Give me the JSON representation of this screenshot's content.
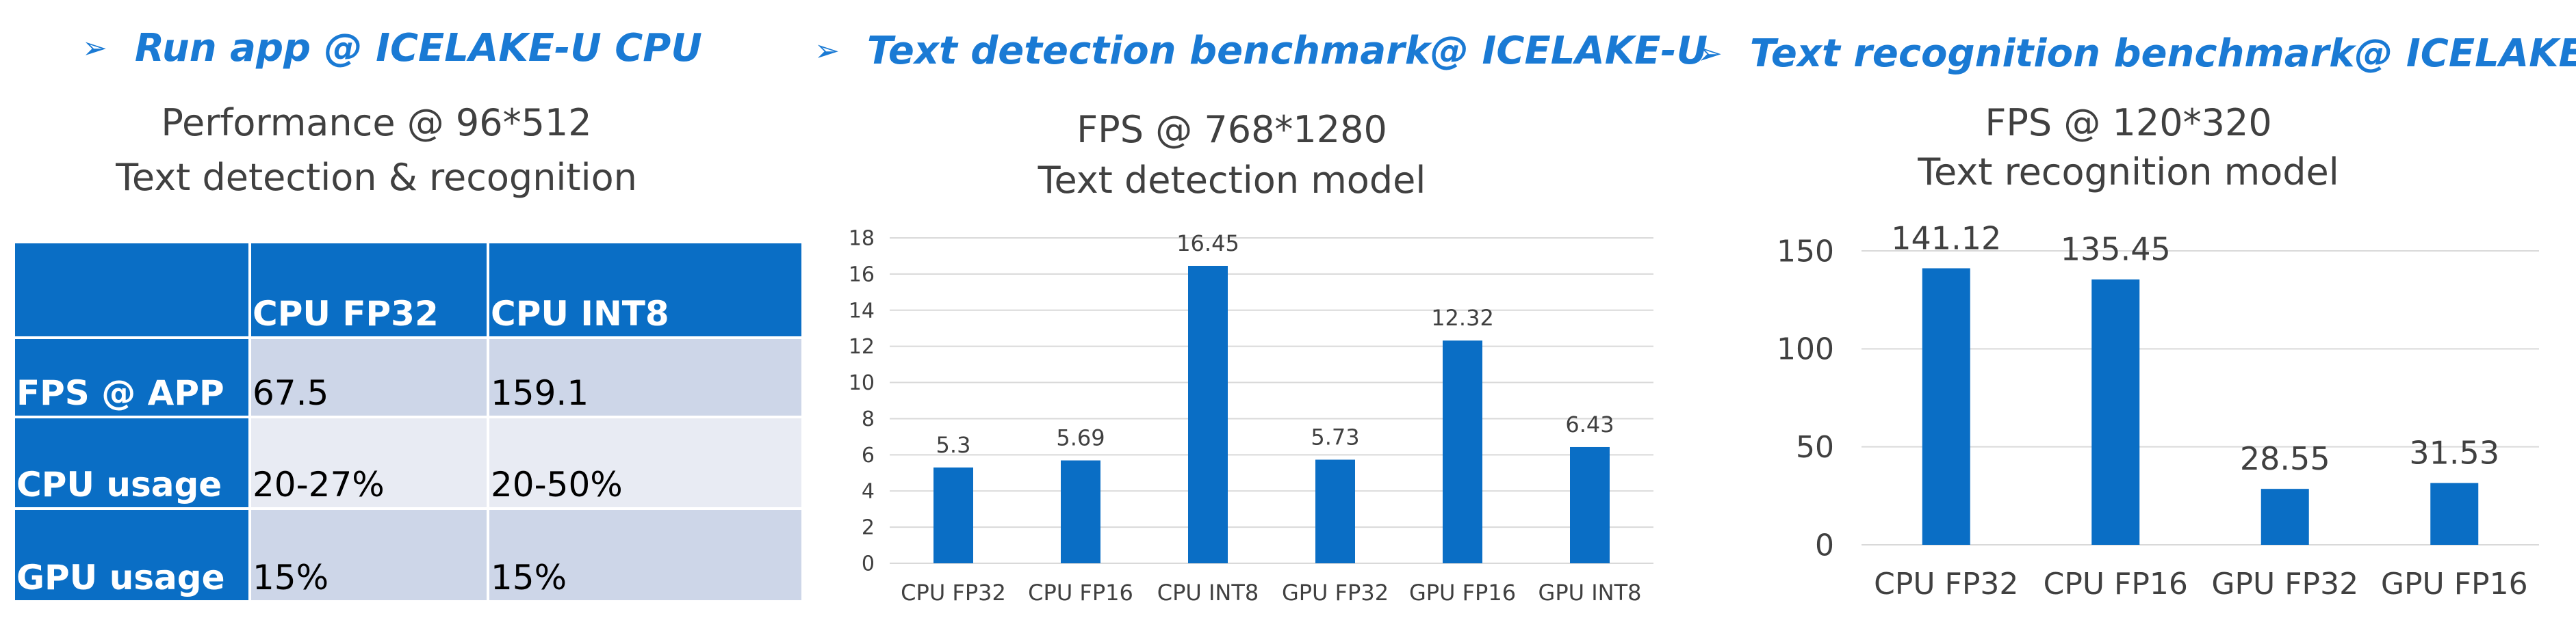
{
  "left_panel": {
    "heading_bullet": "➢",
    "heading": "Run app @ ICELAKE-U CPU",
    "subtitle_line1": "Performance @ 96*512",
    "subtitle_line2": "Text detection & recognition",
    "table": {
      "columns": [
        "",
        "CPU FP32",
        "CPU INT8"
      ],
      "rows": [
        {
          "label": "FPS @ APP",
          "cpu_fp32": "67.5",
          "cpu_int8": "159.1"
        },
        {
          "label": "CPU usage",
          "cpu_fp32": "20-27%",
          "cpu_int8": "20-50%"
        },
        {
          "label": "GPU usage",
          "cpu_fp32": "15%",
          "cpu_int8": "15%"
        }
      ]
    }
  },
  "middle_panel": {
    "heading_bullet": "➢",
    "heading": "Text detection benchmark@ ICELAKE-U",
    "subtitle_line1": "FPS @ 768*1280",
    "subtitle_line2": "Text detection model"
  },
  "right_panel": {
    "heading_bullet": "➢",
    "heading": "Text recognition benchmark@ ICELAKE-U",
    "subtitle_line1": "FPS @ 120*320",
    "subtitle_line2": "Text recognition model"
  },
  "chart_data": [
    {
      "type": "bar",
      "title": "",
      "categories": [
        "CPU FP32",
        "CPU FP16",
        "CPU INT8",
        "GPU FP32",
        "GPU FP16",
        "GPU INT8"
      ],
      "values": [
        5.3,
        5.69,
        16.45,
        5.73,
        12.32,
        6.43
      ],
      "value_labels": [
        "5.3",
        "5.69",
        "16.45",
        "5.73",
        "12.32",
        "6.43"
      ],
      "ylim": [
        0,
        18
      ],
      "yticks": [
        "0",
        "2",
        "4",
        "6",
        "8",
        "10",
        "12",
        "14",
        "16",
        "18"
      ],
      "grid": true,
      "bar_color": "#0a6ec5"
    },
    {
      "type": "bar",
      "title": "",
      "categories": [
        "CPU FP32",
        "CPU FP16",
        "GPU FP32",
        "GPU FP16"
      ],
      "values": [
        141.12,
        135.45,
        28.55,
        31.53
      ],
      "value_labels": [
        "141.12",
        "135.45",
        "28.55",
        "31.53"
      ],
      "ylim": [
        0,
        150
      ],
      "yticks": [
        "0",
        "50",
        "100",
        "150"
      ],
      "grid": true,
      "bar_color": "#0a6ec5"
    }
  ],
  "colors": {
    "heading": "#1a7ad4",
    "accent": "#0a6ec5",
    "grid": "#d9d9d9"
  }
}
